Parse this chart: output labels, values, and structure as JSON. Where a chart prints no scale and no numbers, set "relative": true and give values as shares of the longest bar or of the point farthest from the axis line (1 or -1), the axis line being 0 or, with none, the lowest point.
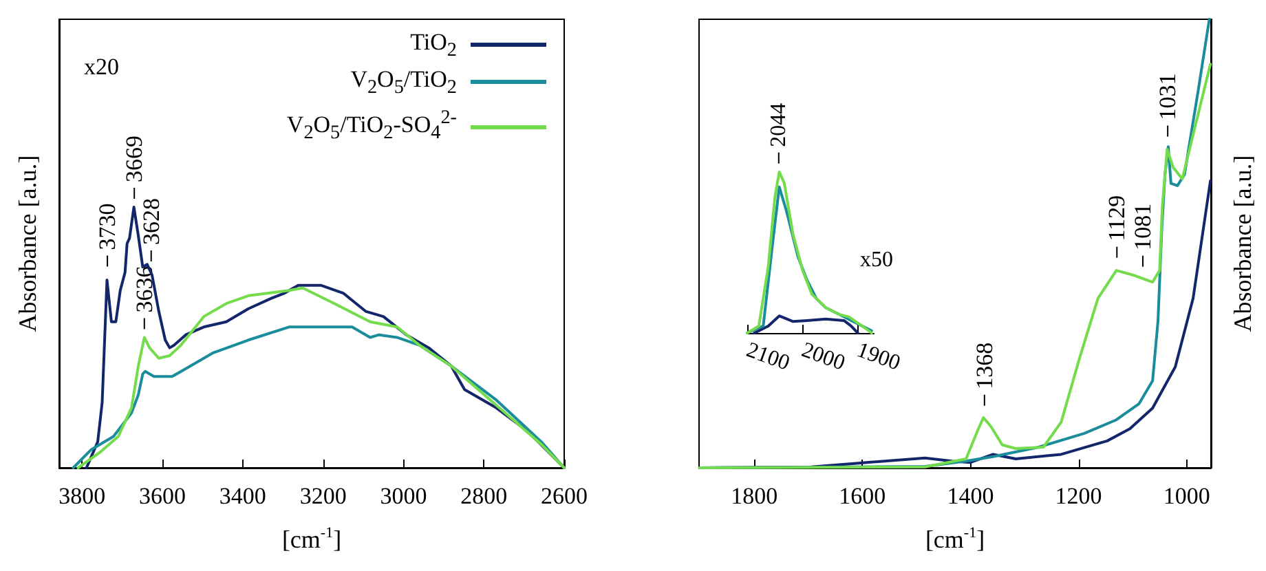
{
  "chart_data": [
    {
      "type": "line",
      "relative": true,
      "xlabel": "[cm$^{-1}$]",
      "ylabel": "Absorbance [a.u.]",
      "xlim": [
        3857,
        2600
      ],
      "xticks": [
        3800,
        3600,
        3400,
        3200,
        3000,
        2800,
        2600
      ],
      "tick_labels": "x",
      "marker": "none",
      "legend": "top right",
      "annotations": [
        "x20",
        {
          "text": "3730",
          "x": 3737,
          "y": 0.74
        },
        {
          "text": "3669",
          "x": 3670,
          "y": 1.0
        },
        {
          "text": "3628",
          "x": 3628,
          "y": 0.76
        },
        {
          "text": "3636",
          "x": 3645,
          "y": 0.5
        }
      ],
      "series": [
        {
          "name": "TiO$_{2}$",
          "color": "#13266a",
          "x": [
            3789,
            3761,
            3750,
            3738,
            3727,
            3716,
            3705,
            3693,
            3688,
            3682,
            3671,
            3660,
            3649,
            3638,
            3626,
            3609,
            3593,
            3582,
            3571,
            3542,
            3497,
            3441,
            3386,
            3329,
            3296,
            3262,
            3206,
            3150,
            3094,
            3050,
            2993,
            2937,
            2881,
            2848,
            2769,
            2691,
            2600
          ],
          "values": [
            0,
            0.1,
            0.25,
            0.72,
            0.56,
            0.56,
            0.68,
            0.75,
            0.86,
            0.88,
            1.0,
            0.89,
            0.77,
            0.78,
            0.74,
            0.6,
            0.49,
            0.46,
            0.47,
            0.51,
            0.54,
            0.56,
            0.61,
            0.65,
            0.67,
            0.7,
            0.7,
            0.67,
            0.6,
            0.58,
            0.51,
            0.46,
            0.39,
            0.3,
            0.23,
            0.14,
            0
          ]
        },
        {
          "name": "V$_{2}$O$_{5}$/TiO$_{2}$",
          "color": "#1b8c9c",
          "x": [
            3822,
            3777,
            3722,
            3677,
            3660,
            3649,
            3643,
            3621,
            3576,
            3531,
            3475,
            3386,
            3285,
            3218,
            3128,
            3083,
            3061,
            3016,
            2960,
            2881,
            2769,
            2657,
            2600
          ],
          "values": [
            0,
            0.07,
            0.12,
            0.21,
            0.28,
            0.36,
            0.37,
            0.35,
            0.35,
            0.39,
            0.44,
            0.49,
            0.54,
            0.54,
            0.54,
            0.5,
            0.51,
            0.5,
            0.47,
            0.39,
            0.26,
            0.1,
            0
          ]
        },
        {
          "name": "V$_{2}$O$_{5}$/TiO$_{2}$-SO$_{4}$$^{2-}$",
          "color": "#74dc4c",
          "x": [
            3810,
            3755,
            3710,
            3677,
            3660,
            3645,
            3632,
            3609,
            3582,
            3554,
            3497,
            3441,
            3386,
            3285,
            3251,
            3172,
            3083,
            3016,
            2960,
            2881,
            2769,
            2657,
            2600
          ],
          "values": [
            0,
            0.06,
            0.12,
            0.23,
            0.39,
            0.5,
            0.46,
            0.42,
            0.43,
            0.47,
            0.58,
            0.63,
            0.66,
            0.68,
            0.69,
            0.63,
            0.56,
            0.54,
            0.47,
            0.39,
            0.24,
            0.09,
            0
          ]
        }
      ]
    },
    {
      "type": "line",
      "relative": true,
      "xlabel": "[cm$^{-1}$]",
      "ylabel": "Absorbance [a.u.]",
      "xlim": [
        1902,
        955
      ],
      "xticks": [
        1800,
        1600,
        1400,
        1200,
        1000
      ],
      "tick_labels": "x",
      "marker": "none",
      "annotations": [
        {
          "text": "1368",
          "x": 1374,
          "y": 0.12
        },
        {
          "text": "1129",
          "x": 1129,
          "y": 0.45
        },
        {
          "text": "1081",
          "x": 1081,
          "y": 0.43
        },
        {
          "text": "1031",
          "x": 1035,
          "y": 0.72
        }
      ],
      "series": [
        {
          "color": "#13266a",
          "x": [
            1901,
            1695,
            1611,
            1484,
            1434,
            1400,
            1358,
            1316,
            1232,
            1147,
            1105,
            1063,
            1021,
            988,
            956
          ],
          "values": [
            0,
            0.002,
            0.01,
            0.022,
            0.015,
            0.012,
            0.03,
            0.02,
            0.03,
            0.06,
            0.087,
            0.133,
            0.225,
            0.378,
            0.64
          ]
        },
        {
          "color": "#1b8c9c",
          "x": [
            1901,
            1484,
            1408,
            1358,
            1274,
            1189,
            1130,
            1088,
            1063,
            1053,
            1046,
            1040,
            1034,
            1029,
            1017,
            1004,
            979,
            958
          ],
          "values": [
            0,
            0.003,
            0.015,
            0.025,
            0.046,
            0.077,
            0.107,
            0.143,
            0.194,
            0.327,
            0.532,
            0.654,
            0.716,
            0.634,
            0.629,
            0.654,
            0.838,
            1.0
          ]
        },
        {
          "color": "#74dc4c",
          "x": [
            1901,
            1484,
            1408,
            1387,
            1376,
            1362,
            1341,
            1316,
            1265,
            1232,
            1198,
            1164,
            1130,
            1097,
            1063,
            1050,
            1045,
            1036,
            1025,
            1008,
            979,
            956
          ],
          "values": [
            0,
            0.002,
            0.02,
            0.082,
            0.112,
            0.092,
            0.051,
            0.043,
            0.046,
            0.102,
            0.245,
            0.378,
            0.44,
            0.429,
            0.414,
            0.44,
            0.583,
            0.71,
            0.67,
            0.644,
            0.787,
            0.9
          ]
        }
      ]
    },
    {
      "type": "line",
      "relative": true,
      "xlim": [
        2100,
        1871
      ],
      "xticks": [
        2100,
        2000,
        1900
      ],
      "tick_labels": "x",
      "marker": "none",
      "annotations": [
        "x50",
        {
          "text": "2044",
          "x": 2043,
          "y": 1.0
        }
      ],
      "series": [
        {
          "color": "#13266a",
          "x": [
            2087,
            2062,
            2042,
            2017,
            1992,
            1958,
            1925,
            1912,
            1900
          ],
          "values": [
            0,
            0.043,
            0.106,
            0.071,
            0.077,
            0.086,
            0.077,
            0.043,
            0
          ]
        },
        {
          "color": "#1b8c9c",
          "x": [
            2100,
            2071,
            2054,
            2042,
            2029,
            2008,
            1992,
            1975,
            1958,
            1933,
            1908,
            1875
          ],
          "values": [
            0,
            0.043,
            0.557,
            0.906,
            0.757,
            0.471,
            0.329,
            0.214,
            0.157,
            0.114,
            0.071,
            0.014
          ]
        },
        {
          "color": "#74dc4c",
          "x": [
            2100,
            2079,
            2062,
            2050,
            2042,
            2033,
            2017,
            2000,
            1983,
            1958,
            1933,
            1916,
            1892,
            1875
          ],
          "values": [
            0,
            0.043,
            0.41,
            0.84,
            1.0,
            0.93,
            0.61,
            0.39,
            0.24,
            0.157,
            0.114,
            0.1,
            0.043,
            0
          ]
        }
      ]
    }
  ]
}
